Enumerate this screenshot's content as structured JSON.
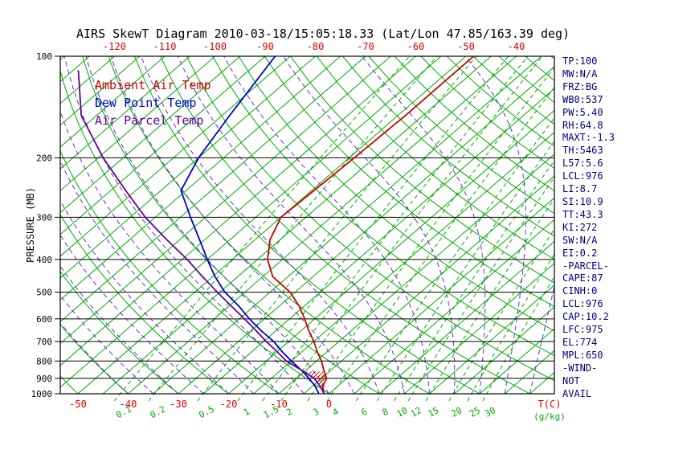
{
  "colors": {
    "grid_green": "#00aa00",
    "axis_red": "#dd0000",
    "moist_purple": "#6633cc",
    "side_text": "#000080",
    "frame_black": "#000000"
  },
  "side_panel": {
    "lines": [
      "TP:100",
      "MW:N/A",
      "FRZ:BG",
      "WB0:537",
      "PW:5.40",
      "RH:64.8",
      "MAXT:-1.3",
      "TH:5463",
      "L57:5.6",
      "LCL:976",
      "LI:8.7",
      "SI:10.9",
      "TT:43.3",
      "KI:272",
      "SW:N/A",
      "EI:0.2",
      "-PARCEL-",
      "CAPE:87",
      "CINH:0",
      "LCL:976",
      "CAP:10.2",
      "LFC:975",
      "EL:774",
      "MPL:650",
      "-WIND-",
      "NOT",
      "AVAIL"
    ]
  },
  "chart_data": {
    "type": "line",
    "variant": "skew-t-log-p",
    "title": "AIRS SkewT Diagram 2010-03-18/15:05:18.33 (Lat/Lon 47.85/163.39 deg)",
    "ylabel": "PRESSURE (MB)",
    "xlabel": "T(C)",
    "mixing_ratio_unit": "(g/kg)",
    "ylim": [
      1000,
      100
    ],
    "pressure_ticks": [
      100,
      200,
      300,
      400,
      500,
      600,
      700,
      800,
      900,
      1000
    ],
    "top_temp_ticks_c": [
      -120,
      -110,
      -100,
      -90,
      -80,
      -70,
      -60,
      -50,
      -40
    ],
    "bottom_temp_ticks_c": [
      -50,
      -40,
      -30,
      -20,
      -10,
      0
    ],
    "isotherm_step_c": 5,
    "mixing_ratio_lines_gkg": [
      0.1,
      0.2,
      0.5,
      1,
      1.5,
      2,
      3,
      4,
      6,
      8,
      10,
      12,
      15,
      20,
      25,
      30
    ],
    "series": [
      {
        "name": "Ambient Air Temp",
        "color": "#cc0000",
        "points_p_t": [
          [
            1000,
            -1
          ],
          [
            950,
            -3
          ],
          [
            900,
            -4
          ],
          [
            850,
            -6.5
          ],
          [
            800,
            -9
          ],
          [
            750,
            -12
          ],
          [
            700,
            -15
          ],
          [
            650,
            -18.5
          ],
          [
            600,
            -22
          ],
          [
            550,
            -26
          ],
          [
            500,
            -31
          ],
          [
            450,
            -38
          ],
          [
            400,
            -43
          ],
          [
            350,
            -47
          ],
          [
            300,
            -50
          ],
          [
            250,
            -49.5
          ],
          [
            200,
            -49
          ],
          [
            150,
            -48.5
          ],
          [
            100,
            -48.5
          ]
        ]
      },
      {
        "name": "Dew Point Temp",
        "color": "#0000cc",
        "points_p_t": [
          [
            1000,
            -2
          ],
          [
            950,
            -4.5
          ],
          [
            900,
            -7.5
          ],
          [
            850,
            -11
          ],
          [
            800,
            -15
          ],
          [
            750,
            -19
          ],
          [
            700,
            -23
          ],
          [
            650,
            -28
          ],
          [
            600,
            -33
          ],
          [
            550,
            -38
          ],
          [
            500,
            -44
          ],
          [
            450,
            -49.5
          ],
          [
            400,
            -55
          ],
          [
            350,
            -61
          ],
          [
            300,
            -68
          ],
          [
            250,
            -76
          ],
          [
            200,
            -80
          ],
          [
            150,
            -83.5
          ],
          [
            100,
            -88
          ]
        ]
      },
      {
        "name": "Air Parcel Temp",
        "color": "#660099",
        "points_p_t": [
          [
            1000,
            -1
          ],
          [
            950,
            -3.5
          ],
          [
            900,
            -6.5
          ],
          [
            850,
            -11
          ],
          [
            800,
            -16
          ],
          [
            750,
            -20
          ],
          [
            700,
            -24.5
          ],
          [
            650,
            -29
          ],
          [
            600,
            -34
          ],
          [
            550,
            -39.5
          ],
          [
            500,
            -45.5
          ],
          [
            450,
            -52
          ],
          [
            400,
            -59
          ],
          [
            350,
            -67.5
          ],
          [
            300,
            -77
          ],
          [
            250,
            -87
          ],
          [
            200,
            -99
          ],
          [
            150,
            -113
          ],
          [
            110,
            -124
          ]
        ]
      }
    ],
    "cap_hatch_region": {
      "from_p": 1000,
      "to_p": 860
    }
  }
}
